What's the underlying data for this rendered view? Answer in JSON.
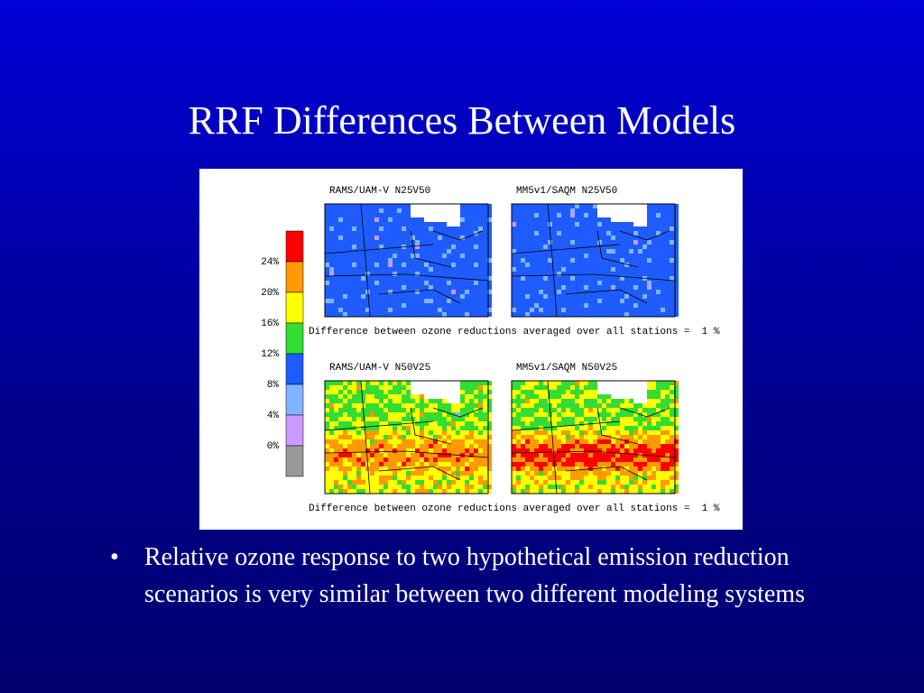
{
  "title": "RRF Differences Between Models",
  "figure": {
    "colorbar_labels": [
      "24%",
      "20%",
      "16%",
      "12%",
      "8%",
      "4%",
      "0%"
    ],
    "panels": [
      {
        "title": "RAMS/UAM-V N25V50"
      },
      {
        "title": "MM5v1/SAQM N25V50"
      },
      {
        "title": "RAMS/UAM-V N50V25"
      },
      {
        "title": "MM5v1/SAQM N50V25"
      }
    ],
    "captions": [
      "Difference between ozone reductions averaged over all stations =  1 %",
      "Difference between ozone reductions averaged over all stations =  1 %"
    ]
  },
  "bullets": [
    "Relative ozone response to two hypothetical emission reduction scenarios is very similar between two different modeling systems"
  ]
}
